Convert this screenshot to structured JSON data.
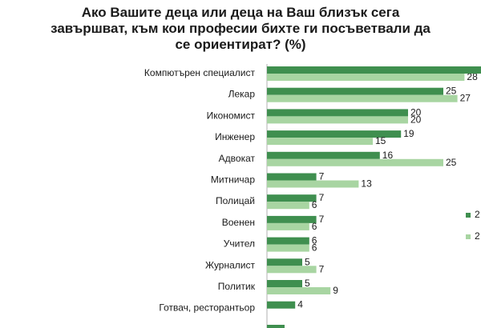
{
  "chart_data": {
    "type": "bar",
    "orientation": "horizontal",
    "title_lines": [
      "Ако Вашите деца или деца на Ваш близък сега",
      "завършват, към кои професии бихте ги посъветвали да",
      "се ориентират? (%)"
    ],
    "categories": [
      "Компютърен специалист",
      "Лекар",
      "Икономист",
      "Инженер",
      "Адвокат",
      "Митничар",
      "Полицай",
      "Военен",
      "Учител",
      "Журналист",
      "Политик",
      "Готвач, ресторантьор"
    ],
    "series": [
      {
        "name": "2",
        "color": "#3f8f4f",
        "values": [
          null,
          25,
          20,
          19,
          16,
          7,
          7,
          7,
          6,
          5,
          5,
          4
        ]
      },
      {
        "name": "2",
        "color": "#a8d5a2",
        "values": [
          28,
          27,
          20,
          15,
          25,
          13,
          6,
          6,
          6,
          7,
          9,
          null
        ]
      }
    ],
    "xlim": [
      0,
      30
    ],
    "legend_position": "right"
  }
}
